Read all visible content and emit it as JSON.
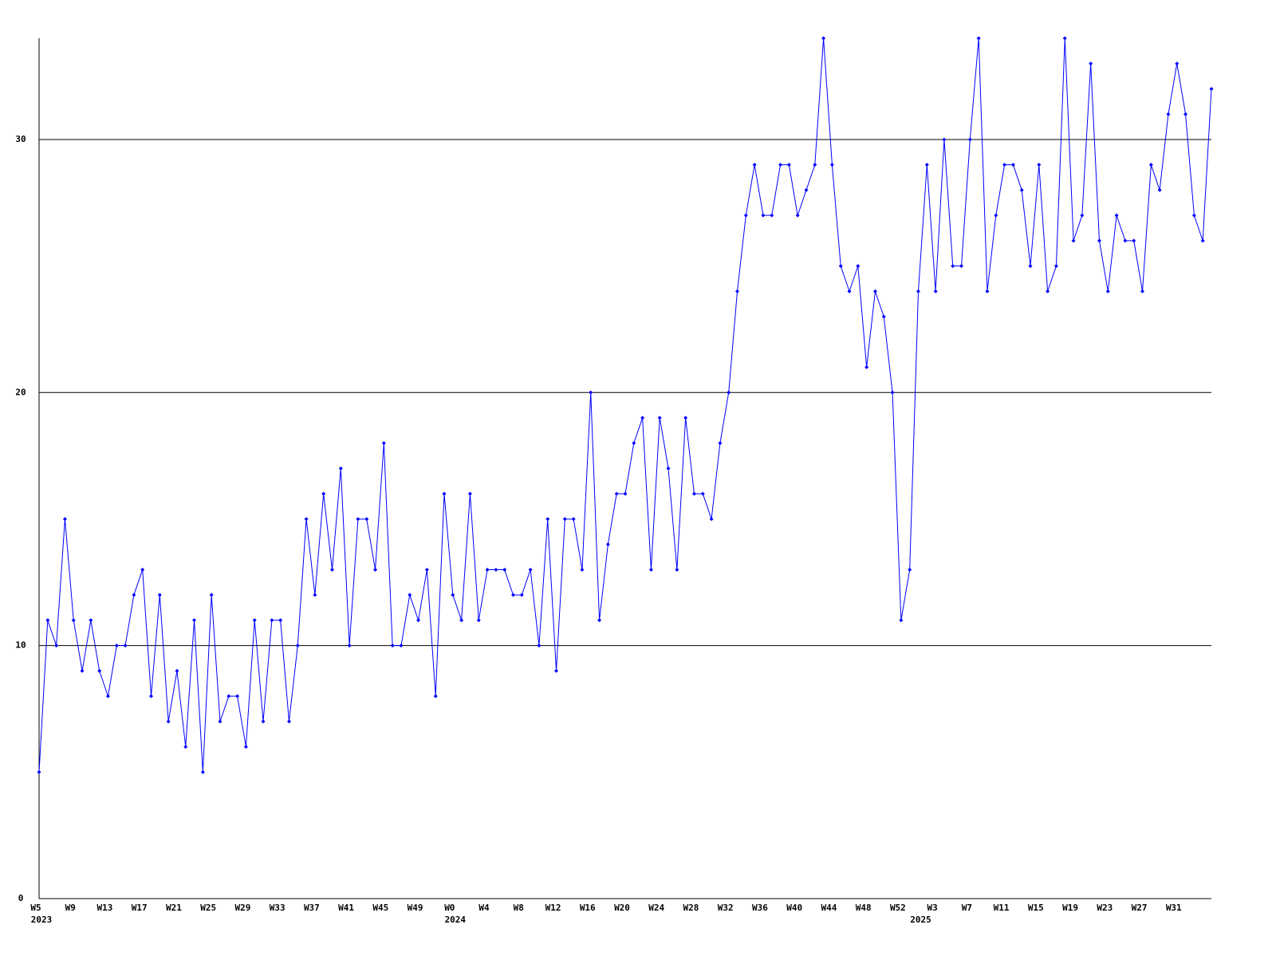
{
  "chart_data": {
    "type": "line",
    "categories": [
      "W5",
      null,
      null,
      null,
      "W9",
      null,
      null,
      null,
      "W13",
      null,
      null,
      null,
      "W17",
      null,
      null,
      null,
      "W21",
      null,
      null,
      null,
      "W25",
      null,
      null,
      null,
      "W29",
      null,
      null,
      null,
      "W33",
      null,
      null,
      null,
      "W37",
      null,
      null,
      null,
      "W41",
      null,
      null,
      null,
      "W45",
      null,
      null,
      null,
      "W49",
      null,
      null,
      null,
      "W0",
      null,
      null,
      null,
      "W4",
      null,
      null,
      null,
      "W8",
      null,
      null,
      null,
      "W12",
      null,
      null,
      null,
      "W16",
      null,
      null,
      null,
      "W20",
      null,
      null,
      null,
      "W24",
      null,
      null,
      null,
      "W28",
      null,
      null,
      null,
      "W32",
      null,
      null,
      null,
      "W36",
      null,
      null,
      null,
      "W40",
      null,
      null,
      null,
      "W44",
      null,
      null,
      null,
      "W48",
      null,
      null,
      null,
      "W52",
      null,
      null,
      null,
      "W3",
      null,
      null,
      null,
      "W7",
      null,
      null,
      null,
      "W11",
      null,
      null,
      null,
      "W15",
      null,
      null,
      null,
      "W19",
      null,
      null,
      null,
      "W23",
      null,
      null,
      null,
      "W27",
      null,
      null,
      null,
      "W31",
      null,
      null,
      null,
      null
    ],
    "year_labels": [
      "2023",
      null,
      null,
      null,
      null,
      null,
      null,
      null,
      null,
      null,
      null,
      null,
      null,
      null,
      null,
      null,
      null,
      null,
      null,
      null,
      null,
      null,
      null,
      null,
      null,
      null,
      null,
      null,
      null,
      null,
      null,
      null,
      null,
      null,
      null,
      null,
      null,
      null,
      null,
      null,
      null,
      null,
      null,
      null,
      null,
      null,
      null,
      null,
      "2024",
      null,
      null,
      null,
      null,
      null,
      null,
      null,
      null,
      null,
      null,
      null,
      null,
      null,
      null,
      null,
      null,
      null,
      null,
      null,
      null,
      null,
      null,
      null,
      null,
      null,
      null,
      null,
      null,
      null,
      null,
      null,
      null,
      null,
      null,
      null,
      null,
      null,
      null,
      null,
      null,
      null,
      null,
      null,
      null,
      null,
      null,
      null,
      null,
      null,
      null,
      null,
      null,
      null,
      "2025",
      null,
      null,
      null,
      null,
      null,
      null,
      null,
      null,
      null,
      null,
      null,
      null,
      null,
      null,
      null,
      null,
      null,
      null,
      null,
      null,
      null,
      null,
      null,
      null,
      null,
      null,
      null,
      null,
      null,
      null,
      null,
      null,
      null,
      null
    ],
    "series": [
      {
        "color": "#0000ff",
        "values": [
          5,
          11,
          10,
          15,
          11,
          9,
          11,
          9,
          8,
          10,
          10,
          12,
          13,
          8,
          12,
          7,
          9,
          6,
          11,
          5,
          12,
          7,
          8,
          8,
          6,
          11,
          7,
          11,
          11,
          7,
          10,
          15,
          12,
          16,
          13,
          17,
          10,
          15,
          15,
          13,
          18,
          10,
          10,
          12,
          11,
          13,
          8,
          16,
          12,
          11,
          16,
          11,
          13,
          13,
          13,
          12,
          12,
          13,
          10,
          15,
          9,
          15,
          15,
          13,
          20,
          11,
          14,
          16,
          16,
          18,
          19,
          13,
          19,
          17,
          13,
          19,
          16,
          16,
          15,
          18,
          20,
          24,
          27,
          29,
          27,
          27,
          29,
          29,
          27,
          28,
          29,
          34,
          29,
          25,
          24,
          25,
          21,
          24,
          23,
          20,
          11,
          13,
          24,
          29,
          24,
          30,
          25,
          25,
          30,
          34,
          24,
          27,
          29,
          29,
          28,
          25,
          29,
          24,
          25,
          34,
          26,
          27,
          33,
          26,
          24,
          27,
          26,
          26,
          24,
          29,
          28,
          31,
          33,
          31,
          27,
          26,
          32
        ]
      }
    ],
    "ylim": [
      0,
      34
    ],
    "yticks": [
      0,
      10,
      20,
      30
    ],
    "grid": true
  }
}
